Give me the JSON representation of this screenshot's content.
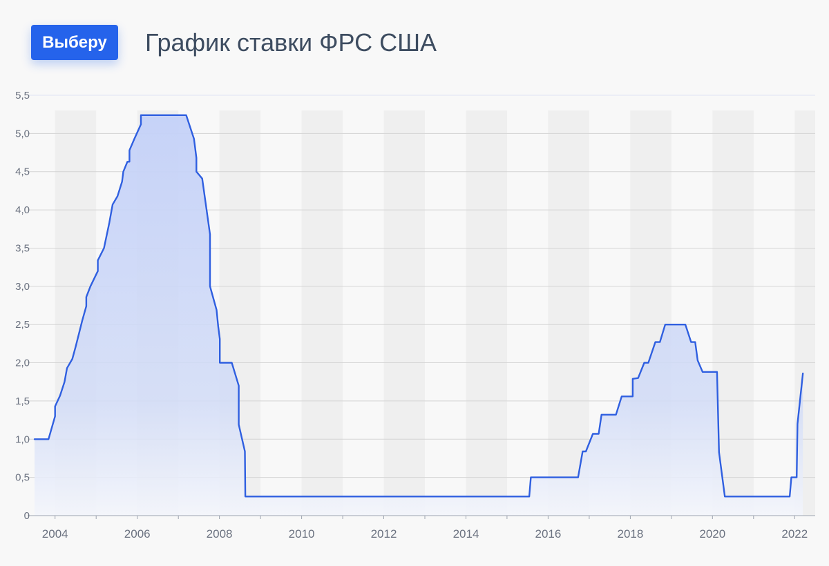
{
  "header": {
    "brand_label": "Выберу",
    "title": "График ставки ФРС США"
  },
  "colors": {
    "background": "#f8f8f8",
    "accent": "#2563eb",
    "line": "#2f5fe0",
    "area_top": "#c7d4f7",
    "band": "#ebebeb",
    "grid": "#d4d4d4",
    "text": "#3d4c60",
    "tick_text": "#6b7280"
  },
  "chart_data": {
    "type": "area",
    "title": "График ставки ФРС США",
    "xlabel": "",
    "ylabel": "",
    "xlim": [
      2003.5,
      2022.5
    ],
    "ylim": [
      0,
      5.5
    ],
    "grid": true,
    "legend": "none",
    "ytick_labels": [
      "0",
      "0,5",
      "1,0",
      "1,5",
      "2,0",
      "2,5",
      "3,0",
      "3,5",
      "4,0",
      "4,5",
      "5,0",
      "5,5"
    ],
    "xtick_labels": [
      "2004",
      "2006",
      "2008",
      "2010",
      "2012",
      "2014",
      "2016",
      "2018",
      "2020",
      "2022"
    ],
    "series": [
      {
        "points": [
          [
            2003.5,
            1.0
          ],
          [
            2003.84,
            1.0
          ],
          [
            2004.0,
            1.3
          ],
          [
            2004.0,
            1.43
          ],
          [
            2004.12,
            1.57
          ],
          [
            2004.23,
            1.75
          ],
          [
            2004.29,
            1.93
          ],
          [
            2004.42,
            2.05
          ],
          [
            2004.5,
            2.21
          ],
          [
            2004.59,
            2.4
          ],
          [
            2004.66,
            2.55
          ],
          [
            2004.76,
            2.74
          ],
          [
            2004.76,
            2.86
          ],
          [
            2004.86,
            3.0
          ],
          [
            2005.04,
            3.2
          ],
          [
            2005.04,
            3.34
          ],
          [
            2005.19,
            3.5
          ],
          [
            2005.32,
            3.83
          ],
          [
            2005.4,
            4.07
          ],
          [
            2005.52,
            4.18
          ],
          [
            2005.63,
            4.37
          ],
          [
            2005.66,
            4.5
          ],
          [
            2005.76,
            4.63
          ],
          [
            2005.81,
            4.63
          ],
          [
            2005.81,
            4.78
          ],
          [
            2005.93,
            4.93
          ],
          [
            2006.09,
            5.12
          ],
          [
            2006.09,
            5.24
          ],
          [
            2007.19,
            5.24
          ],
          [
            2007.38,
            4.93
          ],
          [
            2007.44,
            4.68
          ],
          [
            2007.44,
            4.5
          ],
          [
            2007.58,
            4.41
          ],
          [
            2007.77,
            3.68
          ],
          [
            2007.77,
            3.0
          ],
          [
            2007.93,
            2.69
          ],
          [
            2007.97,
            2.48
          ],
          [
            2008.01,
            2.31
          ],
          [
            2008.01,
            2.0
          ],
          [
            2008.3,
            2.0
          ],
          [
            2008.47,
            1.7
          ],
          [
            2008.47,
            1.19
          ],
          [
            2008.62,
            0.84
          ],
          [
            2008.63,
            0.25
          ],
          [
            2015.54,
            0.25
          ],
          [
            2015.58,
            0.5
          ],
          [
            2016.73,
            0.5
          ],
          [
            2016.84,
            0.84
          ],
          [
            2016.92,
            0.84
          ],
          [
            2017.09,
            1.07
          ],
          [
            2017.23,
            1.07
          ],
          [
            2017.3,
            1.32
          ],
          [
            2017.65,
            1.32
          ],
          [
            2017.79,
            1.56
          ],
          [
            2018.06,
            1.56
          ],
          [
            2018.06,
            1.79
          ],
          [
            2018.19,
            1.8
          ],
          [
            2018.34,
            2.0
          ],
          [
            2018.44,
            2.0
          ],
          [
            2018.61,
            2.27
          ],
          [
            2018.72,
            2.27
          ],
          [
            2018.85,
            2.5
          ],
          [
            2019.34,
            2.5
          ],
          [
            2019.48,
            2.27
          ],
          [
            2019.58,
            2.27
          ],
          [
            2019.64,
            2.03
          ],
          [
            2019.76,
            1.88
          ],
          [
            2020.11,
            1.88
          ],
          [
            2020.16,
            0.83
          ],
          [
            2020.3,
            0.25
          ],
          [
            2021.88,
            0.25
          ],
          [
            2021.92,
            0.5
          ],
          [
            2022.05,
            0.5
          ],
          [
            2022.07,
            1.2
          ],
          [
            2022.2,
            1.86
          ]
        ]
      }
    ]
  }
}
